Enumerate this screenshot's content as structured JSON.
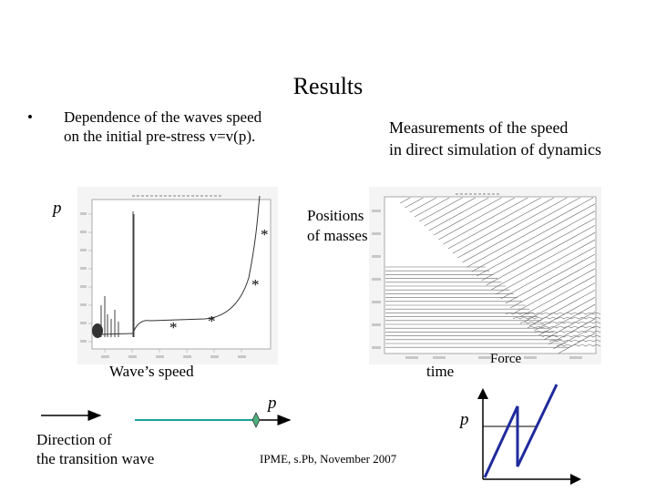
{
  "slide": {
    "title": "Results",
    "bullet_symbol": "•",
    "bullet_line1": "Dependence of the waves speed",
    "bullet_line2": "on the initial pre-stress v=v(p).",
    "measurements_line1": "Measurements of the speed",
    "measurements_line2": "in direct simulation of dynamics",
    "plot_p_label": "p",
    "positions_line1": "Positions",
    "positions_line2": "of masses",
    "waves_speed_label": "Wave’s speed",
    "time_label": "time",
    "force_label": "Force",
    "arrow_p_label": "p",
    "force_p_label": "p",
    "direction_line1": "Direction of",
    "direction_line2": "the transition wave",
    "footer": "IPME, s.Pb, November 2007",
    "asterisk": "*"
  },
  "colors": {
    "transition_line": "#1aa39a",
    "diamond": "#4caf7d",
    "force_graph": "#1f2a9c"
  }
}
